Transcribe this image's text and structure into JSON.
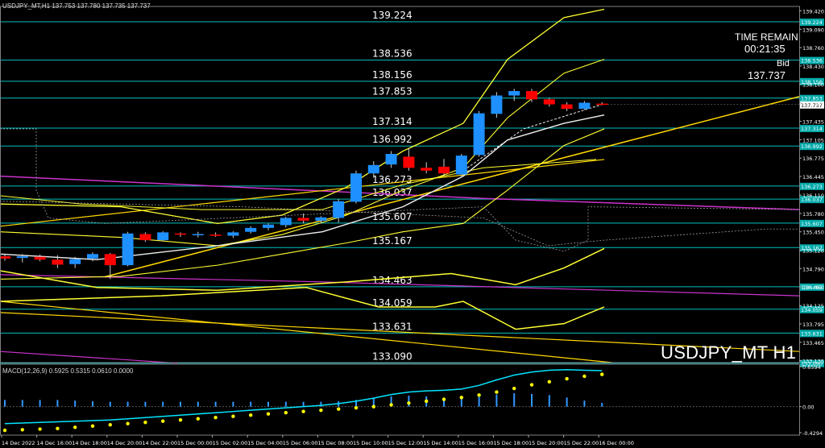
{
  "header": {
    "title": "USDJPY_MT,H1  137.753 137.780 137.735 137.737"
  },
  "info": {
    "time_remain_label": "TIME REMAIN",
    "time_remain_value": "00:21:35",
    "bid_label": "Bid",
    "bid_value": "137.737",
    "watermark": "USDJPY_MT H1"
  },
  "macd_panel": {
    "title": "MACD(12,26,9) 0.5925 0.5315 0.0610 0.0000"
  },
  "colors": {
    "background": "#000000",
    "bull": "#1e90ff",
    "bear": "#ff0000",
    "level_line": "#00c0c0",
    "bollinger": "#ffff33",
    "trend_line": "#ffd700",
    "ma_magenta": "#cc33cc",
    "ma_white": "#f0f0f0",
    "macd_line": "#00e5ff",
    "macd_signal": "#ffff00",
    "macd_hist": "#3399ff",
    "axis_text": "#ffffff",
    "price_badge": "#00aaaa"
  },
  "chart_data": [
    {
      "type": "candlestick",
      "symbol": "USDJPY_MT",
      "timeframe": "H1",
      "ylim": [
        133.1,
        139.5
      ],
      "y_ticks": [
        "139.420",
        "139.090",
        "138.760",
        "138.430",
        "138.100",
        "137.765",
        "137.435",
        "137.105",
        "136.775",
        "136.445",
        "136.110",
        "135.780",
        "135.450",
        "135.120",
        "134.790",
        "134.460",
        "134.125",
        "133.795",
        "133.465",
        "133.135"
      ],
      "x_ticks": [
        "14 Dec 2022",
        "14 Dec 16:00",
        "14 Dec 18:00",
        "14 Dec 20:00",
        "14 Dec 22:00",
        "15 Dec 00:00",
        "15 Dec 02:00",
        "15 Dec 04:00",
        "15 Dec 06:00",
        "15 Dec 08:00",
        "15 Dec 10:00",
        "15 Dec 12:00",
        "15 Dec 14:00",
        "15 Dec 16:00",
        "15 Dec 18:00",
        "15 Dec 20:00",
        "15 Dec 22:00",
        "16 Dec 00:00"
      ],
      "levels": [
        "139.224",
        "138.536",
        "138.156",
        "137.853",
        "137.314",
        "136.992",
        "136.273",
        "136.037",
        "135.607",
        "135.167",
        "134.463",
        "134.059",
        "133.631",
        "133.090"
      ],
      "level_values": [
        139.224,
        138.536,
        138.156,
        137.853,
        137.314,
        136.992,
        136.273,
        136.037,
        135.607,
        135.167,
        134.463,
        134.059,
        133.631,
        133.09
      ],
      "candles": [
        {
          "o": 135.01,
          "h": 135.06,
          "l": 134.93,
          "c": 134.97
        },
        {
          "o": 134.98,
          "h": 135.05,
          "l": 134.9,
          "c": 135.01
        },
        {
          "o": 135.0,
          "h": 135.04,
          "l": 134.92,
          "c": 134.95
        },
        {
          "o": 134.95,
          "h": 135.03,
          "l": 134.8,
          "c": 134.86
        },
        {
          "o": 134.87,
          "h": 135.0,
          "l": 134.8,
          "c": 134.96
        },
        {
          "o": 134.97,
          "h": 135.08,
          "l": 134.92,
          "c": 135.05
        },
        {
          "o": 135.05,
          "h": 135.07,
          "l": 134.6,
          "c": 134.85
        },
        {
          "o": 134.85,
          "h": 135.45,
          "l": 134.83,
          "c": 135.42
        },
        {
          "o": 135.41,
          "h": 135.44,
          "l": 135.27,
          "c": 135.3
        },
        {
          "o": 135.3,
          "h": 135.46,
          "l": 135.28,
          "c": 135.44
        },
        {
          "o": 135.42,
          "h": 135.44,
          "l": 135.36,
          "c": 135.4
        },
        {
          "o": 135.4,
          "h": 135.45,
          "l": 135.35,
          "c": 135.41
        },
        {
          "o": 135.4,
          "h": 135.44,
          "l": 135.36,
          "c": 135.38
        },
        {
          "o": 135.38,
          "h": 135.46,
          "l": 135.34,
          "c": 135.44
        },
        {
          "o": 135.45,
          "h": 135.55,
          "l": 135.42,
          "c": 135.52
        },
        {
          "o": 135.52,
          "h": 135.6,
          "l": 135.48,
          "c": 135.58
        },
        {
          "o": 135.57,
          "h": 135.72,
          "l": 135.53,
          "c": 135.7
        },
        {
          "o": 135.7,
          "h": 135.78,
          "l": 135.6,
          "c": 135.65
        },
        {
          "o": 135.65,
          "h": 135.73,
          "l": 135.6,
          "c": 135.71
        },
        {
          "o": 135.7,
          "h": 136.04,
          "l": 135.62,
          "c": 136.0
        },
        {
          "o": 135.99,
          "h": 136.55,
          "l": 135.96,
          "c": 136.5
        },
        {
          "o": 136.5,
          "h": 136.72,
          "l": 136.42,
          "c": 136.65
        },
        {
          "o": 136.66,
          "h": 136.9,
          "l": 136.6,
          "c": 136.85
        },
        {
          "o": 136.8,
          "h": 136.96,
          "l": 136.55,
          "c": 136.6
        },
        {
          "o": 136.6,
          "h": 136.7,
          "l": 136.5,
          "c": 136.55
        },
        {
          "o": 136.62,
          "h": 136.76,
          "l": 136.46,
          "c": 136.5
        },
        {
          "o": 136.48,
          "h": 136.85,
          "l": 136.45,
          "c": 136.82
        },
        {
          "o": 136.83,
          "h": 137.62,
          "l": 136.8,
          "c": 137.58
        },
        {
          "o": 137.57,
          "h": 137.96,
          "l": 137.5,
          "c": 137.9
        },
        {
          "o": 137.9,
          "h": 138.02,
          "l": 137.8,
          "c": 137.98
        },
        {
          "o": 137.98,
          "h": 138.02,
          "l": 137.78,
          "c": 137.83
        },
        {
          "o": 137.83,
          "h": 137.86,
          "l": 137.7,
          "c": 137.74
        },
        {
          "o": 137.74,
          "h": 137.78,
          "l": 137.62,
          "c": 137.66
        },
        {
          "o": 137.66,
          "h": 137.8,
          "l": 137.64,
          "c": 137.77
        },
        {
          "o": 137.753,
          "h": 137.78,
          "l": 137.735,
          "c": 137.737
        }
      ]
    },
    {
      "type": "macd",
      "title": "MACD(12,26,9) 0.5925 0.5315 0.0610 0.0000",
      "ylim": [
        -0.4294,
        0.6594
      ],
      "y_ticks": [
        "0.6594",
        "0.00",
        "-0.4294"
      ],
      "macd_line": [
        -0.28,
        -0.27,
        -0.26,
        -0.25,
        -0.24,
        -0.23,
        -0.22,
        -0.2,
        -0.18,
        -0.16,
        -0.14,
        -0.12,
        -0.1,
        -0.08,
        -0.06,
        -0.04,
        -0.02,
        0.0,
        0.02,
        0.05,
        0.09,
        0.14,
        0.2,
        0.24,
        0.26,
        0.27,
        0.29,
        0.35,
        0.44,
        0.52,
        0.57,
        0.6,
        0.61,
        0.6,
        0.5925
      ],
      "signal_line": [
        -0.39,
        -0.38,
        -0.37,
        -0.36,
        -0.34,
        -0.32,
        -0.3,
        -0.28,
        -0.26,
        -0.24,
        -0.22,
        -0.2,
        -0.18,
        -0.16,
        -0.14,
        -0.12,
        -0.1,
        -0.08,
        -0.06,
        -0.04,
        -0.02,
        0.0,
        0.03,
        0.06,
        0.09,
        0.12,
        0.15,
        0.19,
        0.24,
        0.3,
        0.36,
        0.41,
        0.46,
        0.5,
        0.5315
      ],
      "histogram": [
        0.11,
        0.11,
        0.11,
        0.11,
        0.1,
        0.09,
        0.08,
        0.08,
        0.08,
        0.08,
        0.08,
        0.08,
        0.08,
        0.08,
        0.08,
        0.08,
        0.08,
        0.08,
        0.08,
        0.09,
        0.11,
        0.14,
        0.17,
        0.18,
        0.17,
        0.15,
        0.14,
        0.16,
        0.2,
        0.22,
        0.21,
        0.19,
        0.15,
        0.1,
        0.061
      ]
    }
  ]
}
